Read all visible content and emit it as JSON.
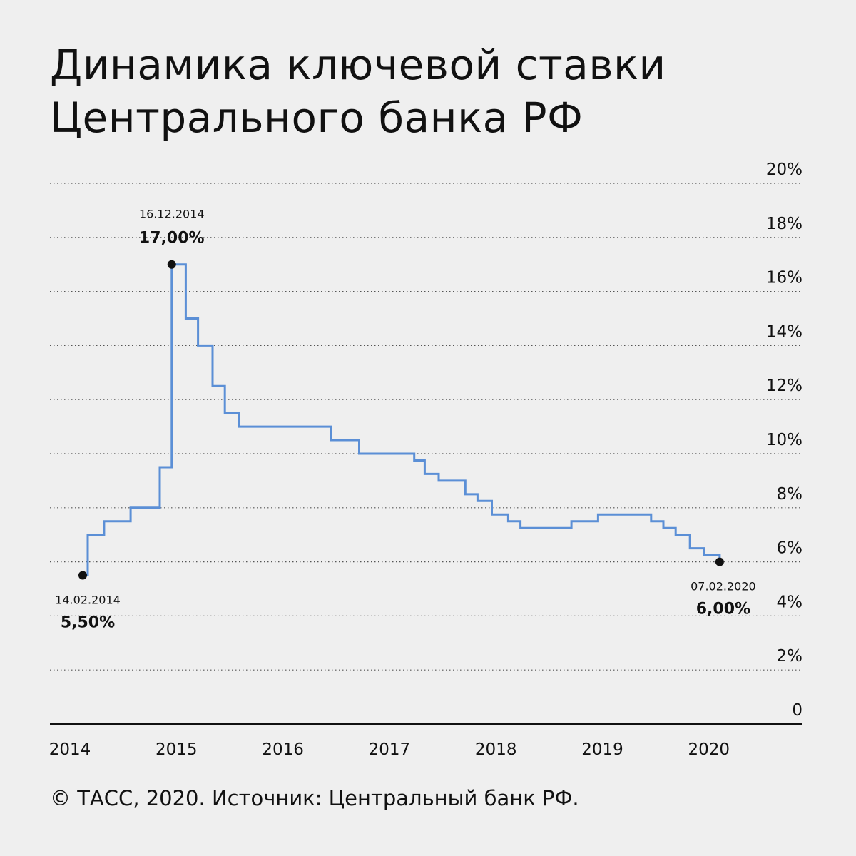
{
  "title_line1": "Динамика ключевой ставки",
  "title_line2": "Центрального банка РФ",
  "source": "© ТАСС, 2020. Источник: Центральный банк РФ.",
  "chart_data": {
    "type": "line",
    "step": true,
    "title": "Динамика ключевой ставки Центрального банка РФ",
    "xlabel": "",
    "ylabel": "",
    "ylim": [
      0,
      20
    ],
    "xlim": [
      2014.0,
      2021.0
    ],
    "grid": true,
    "line_color": "#5b8fd6",
    "y_ticks": [
      {
        "value": 0,
        "label": "0"
      },
      {
        "value": 2,
        "label": "2%"
      },
      {
        "value": 4,
        "label": "4%"
      },
      {
        "value": 6,
        "label": "6%"
      },
      {
        "value": 8,
        "label": "8%"
      },
      {
        "value": 10,
        "label": "10%"
      },
      {
        "value": 12,
        "label": "12%"
      },
      {
        "value": 14,
        "label": "14%"
      },
      {
        "value": 16,
        "label": "16%"
      },
      {
        "value": 18,
        "label": "18%"
      },
      {
        "value": 20,
        "label": "20%"
      }
    ],
    "x_ticks": [
      {
        "value": 2014,
        "label": "2014"
      },
      {
        "value": 2015,
        "label": "2015"
      },
      {
        "value": 2016,
        "label": "2016"
      },
      {
        "value": 2017,
        "label": "2017"
      },
      {
        "value": 2018,
        "label": "2018"
      },
      {
        "value": 2019,
        "label": "2019"
      },
      {
        "value": 2020,
        "label": "2020"
      }
    ],
    "series": [
      {
        "points": [
          {
            "date": "2014-02-14",
            "value": 5.5
          },
          {
            "date": "2014-03-03",
            "value": 7.0
          },
          {
            "date": "2014-04-28",
            "value": 7.5
          },
          {
            "date": "2014-07-28",
            "value": 8.0
          },
          {
            "date": "2014-11-05",
            "value": 9.5
          },
          {
            "date": "2014-12-16",
            "value": 17.0
          },
          {
            "date": "2015-02-02",
            "value": 15.0
          },
          {
            "date": "2015-03-16",
            "value": 14.0
          },
          {
            "date": "2015-05-05",
            "value": 12.5
          },
          {
            "date": "2015-06-16",
            "value": 11.5
          },
          {
            "date": "2015-08-03",
            "value": 11.0
          },
          {
            "date": "2016-06-14",
            "value": 10.5
          },
          {
            "date": "2016-09-19",
            "value": 10.0
          },
          {
            "date": "2017-03-27",
            "value": 9.75
          },
          {
            "date": "2017-05-02",
            "value": 9.25
          },
          {
            "date": "2017-06-19",
            "value": 9.0
          },
          {
            "date": "2017-09-18",
            "value": 8.5
          },
          {
            "date": "2017-10-30",
            "value": 8.25
          },
          {
            "date": "2017-12-18",
            "value": 7.75
          },
          {
            "date": "2018-02-12",
            "value": 7.5
          },
          {
            "date": "2018-03-26",
            "value": 7.25
          },
          {
            "date": "2018-09-17",
            "value": 7.5
          },
          {
            "date": "2018-12-17",
            "value": 7.75
          },
          {
            "date": "2019-06-17",
            "value": 7.5
          },
          {
            "date": "2019-07-29",
            "value": 7.25
          },
          {
            "date": "2019-09-09",
            "value": 7.0
          },
          {
            "date": "2019-10-28",
            "value": 6.5
          },
          {
            "date": "2019-12-16",
            "value": 6.25
          },
          {
            "date": "2020-02-07",
            "value": 6.0
          }
        ]
      }
    ],
    "annotations": [
      {
        "date_label": "14.02.2014",
        "value_label": "5,50%",
        "date": "2014-02-14",
        "value": 5.5,
        "label_position": "below"
      },
      {
        "date_label": "16.12.2014",
        "value_label": "17,00%",
        "date": "2014-12-16",
        "value": 17.0,
        "label_position": "above"
      },
      {
        "date_label": "07.02.2020",
        "value_label": "6,00%",
        "date": "2020-02-07",
        "value": 6.0,
        "label_position": "below"
      }
    ]
  }
}
